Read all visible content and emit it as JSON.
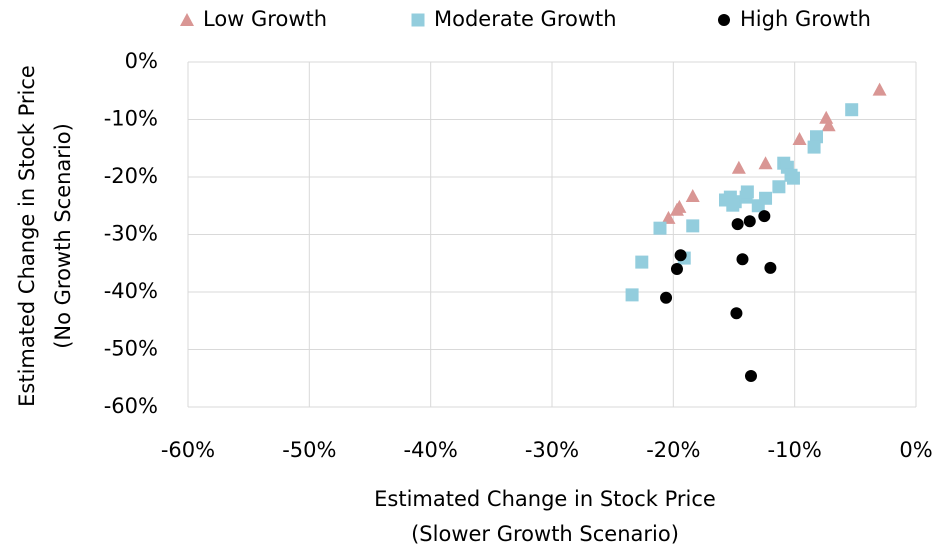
{
  "chart_data": {
    "type": "scatter",
    "xlabel": [
      "Estimated Change in Stock Price",
      "(Slower Growth Scenario)"
    ],
    "ylabel": [
      "Estimated Change in Stock Price",
      "(No Growth Scenario)"
    ],
    "xlim": [
      -60,
      0
    ],
    "ylim": [
      -60,
      0
    ],
    "xticks": [
      {
        "value": -60,
        "label": "-60%"
      },
      {
        "value": -50,
        "label": "-50%"
      },
      {
        "value": -40,
        "label": "-40%"
      },
      {
        "value": -30,
        "label": "-30%"
      },
      {
        "value": -20,
        "label": "-20%"
      },
      {
        "value": -10,
        "label": "-10%"
      },
      {
        "value": 0,
        "label": "0%"
      }
    ],
    "yticks": [
      {
        "value": -60,
        "label": "-60%"
      },
      {
        "value": -50,
        "label": "-50%"
      },
      {
        "value": -40,
        "label": "-40%"
      },
      {
        "value": -30,
        "label": "-30%"
      },
      {
        "value": -20,
        "label": "-20%"
      },
      {
        "value": -10,
        "label": "-10%"
      },
      {
        "value": 0,
        "label": "0%"
      }
    ],
    "grid": true,
    "series": [
      {
        "name": "Low Growth",
        "color": "#d99694",
        "marker": "triangle",
        "x": [
          -3.0,
          -7.4,
          -7.2,
          -9.6,
          -12.4,
          -14.6,
          -18.4,
          -19.5,
          -19.7,
          -20.4
        ],
        "values": [
          -4.8,
          -9.7,
          -11.0,
          -13.4,
          -17.6,
          -18.4,
          -23.3,
          -25.2,
          -25.7,
          -27.1
        ]
      },
      {
        "name": "Moderate Growth",
        "color": "#93cddd",
        "marker": "square",
        "x": [
          -5.3,
          -8.2,
          -8.4,
          -10.9,
          -10.6,
          -10.3,
          -10.1,
          -11.3,
          -12.4,
          -13.0,
          -14.0,
          -14.9,
          -13.9,
          -15.3,
          -15.1,
          -15.7,
          -18.4,
          -21.1,
          -19.1,
          -22.6,
          -23.4
        ],
        "values": [
          -8.3,
          -13.0,
          -14.8,
          -17.6,
          -18.3,
          -19.7,
          -20.2,
          -21.7,
          -23.7,
          -25.0,
          -23.5,
          -24.3,
          -22.6,
          -23.5,
          -24.9,
          -24.0,
          -28.5,
          -28.9,
          -34.1,
          -34.8,
          -40.5
        ]
      },
      {
        "name": "High Growth",
        "color": "#000000",
        "marker": "circle",
        "x": [
          -14.7,
          -12.5,
          -13.7,
          -19.4,
          -19.7,
          -14.3,
          -12.0,
          -20.6,
          -14.8,
          -13.6
        ],
        "values": [
          -28.2,
          -26.8,
          -27.7,
          -33.6,
          -36.0,
          -34.3,
          -35.8,
          -41.0,
          -43.7,
          -54.6
        ]
      }
    ]
  }
}
